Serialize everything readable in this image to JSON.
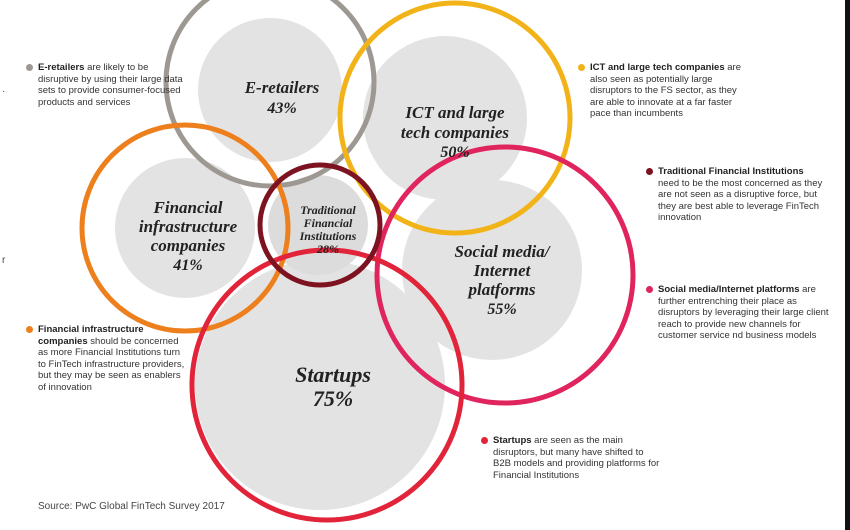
{
  "circles": [
    {
      "id": "e-retailers",
      "title": "E-retailers",
      "pct": "43%",
      "color": "#9e9892"
    },
    {
      "id": "ict",
      "title_line1": "ICT and large",
      "title_line2": "tech companies",
      "pct": "50%",
      "color": "#f2b318"
    },
    {
      "id": "fin-infra",
      "title_line1": "Financial",
      "title_line2": "infrastructure",
      "title_line3": "companies",
      "pct": "41%",
      "color": "#ed7f1c"
    },
    {
      "id": "traditional",
      "title_line1": "Traditional",
      "title_line2": "Financial",
      "title_line3": "Institutions",
      "pct": "28%",
      "color": "#7d1220"
    },
    {
      "id": "social",
      "title_line1": "Social media/",
      "title_line2": "Internet",
      "title_line3": "platforms",
      "pct": "55%",
      "color": "#e0245e"
    },
    {
      "id": "startups",
      "title": "Startups",
      "pct": "75%",
      "color": "#e2243a"
    }
  ],
  "notes": {
    "e_retailers": {
      "bold": "E-retailers",
      "text": " are likely to be disruptive by using their large data sets to provide consumer-focused products and services",
      "color": "#9e9892"
    },
    "ict": {
      "bold": "ICT and large tech companies",
      "text": " are also seen as potentially large disruptors to the FS sector, as they are able to innovate at a far faster pace than incumbents",
      "color": "#f2b318"
    },
    "traditional": {
      "bold": "Traditional Financial Institutions",
      "text": " need to be the most concerned as they are not seen as a disruptive force, but they are best able to leverage FinTech innovation",
      "color": "#7d1220"
    },
    "social": {
      "bold": "Social media/Internet platforms",
      "text": " are further entrenching their place as disruptors by leveraging their large client reach to provide new channels for customer service nd business models",
      "color": "#e0245e"
    },
    "fin_infra": {
      "bold": "Financial infrastructure companies",
      "text": " should be concerned as more Financial Institutions turn to FinTech infrastructure providers, but they may be seen as enablers of innovation",
      "color": "#ed7f1c"
    },
    "startups": {
      "bold": "Startups",
      "text": " are seen as the main disruptors, but many have shifted to B2B models and providing platforms for Financial Institutions",
      "color": "#e2243a"
    }
  },
  "source": "Source: PwC Global FinTech Survey 2017",
  "stray_left": "r"
}
